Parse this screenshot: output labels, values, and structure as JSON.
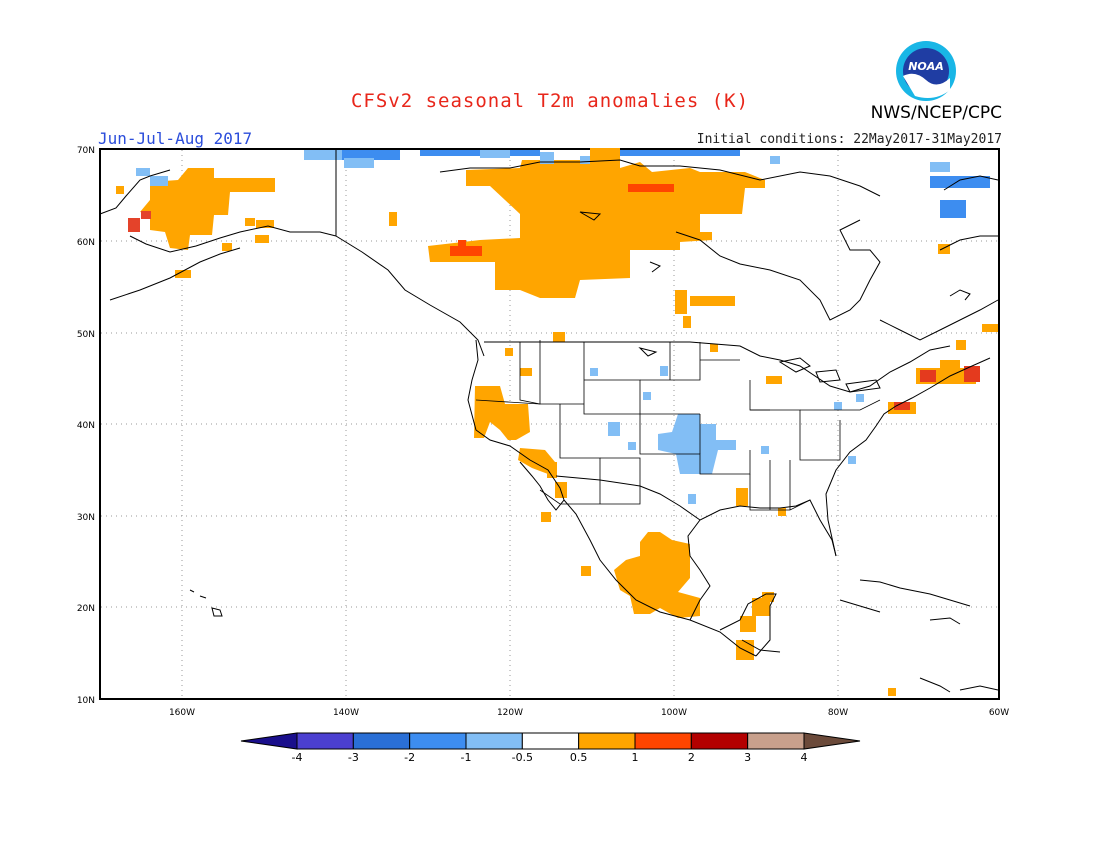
{
  "header": {
    "title": "CFSv2 seasonal T2m anomalies (K)",
    "season": "Jun-Jul-Aug 2017",
    "initial_conditions": "Initial conditions: 22May2017-31May2017",
    "agency": "NWS/NCEP/CPC",
    "logo_text": "NOAA"
  },
  "map": {
    "region": "North America",
    "lon_range": [
      -175,
      -60
    ],
    "lat_range": [
      10,
      70
    ],
    "x_ticks": [
      "160W",
      "140W",
      "120W",
      "100W",
      "80W",
      "60W"
    ],
    "y_ticks": [
      "70N",
      "60N",
      "50N",
      "40N",
      "30N",
      "20N",
      "10N"
    ],
    "grid": "dotted"
  },
  "colorbar": {
    "labels": [
      "-4",
      "-3",
      "-2",
      "-1",
      "-0.5",
      "0.5",
      "1",
      "2",
      "3",
      "4"
    ],
    "colors": [
      "#1a0f8c",
      "#4b3fd0",
      "#2a6fd6",
      "#3d8df0",
      "#82bef5",
      "#ffffff",
      "#ffa500",
      "#ff4500",
      "#b30000",
      "#c8a08c",
      "#6b4a3a"
    ]
  },
  "anomaly_regions": [
    {
      "name": "Alaska warm",
      "color": "#ffa500"
    },
    {
      "name": "Western Canada warm",
      "color": "#ffa500"
    },
    {
      "name": "Central US cool",
      "color": "#82bef5"
    },
    {
      "name": "Mexico warm",
      "color": "#ffa500"
    },
    {
      "name": "New England warm",
      "color": "#ff4500"
    }
  ]
}
